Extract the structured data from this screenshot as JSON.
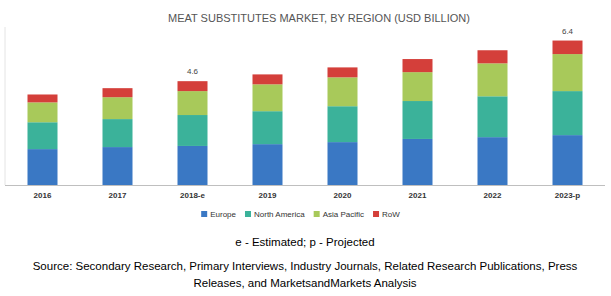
{
  "chart_data": {
    "type": "bar",
    "stacked": true,
    "title": "MEAT SUBSTITUTES MARKET, BY REGION (USD BILLION)",
    "categories": [
      "2016",
      "2017",
      "2018-e",
      "2019",
      "2020",
      "2021",
      "2022",
      "2023-p"
    ],
    "series": [
      {
        "name": "Europe",
        "color": "#3a78c4",
        "values": [
          1.59,
          1.68,
          1.73,
          1.81,
          1.9,
          2.04,
          2.12,
          2.21
        ]
      },
      {
        "name": "North America",
        "color": "#3bb29a",
        "values": [
          1.19,
          1.24,
          1.37,
          1.46,
          1.59,
          1.68,
          1.81,
          1.95
        ]
      },
      {
        "name": "Asia Pacific",
        "color": "#a8c95a",
        "values": [
          0.88,
          0.97,
          1.06,
          1.19,
          1.28,
          1.28,
          1.46,
          1.64
        ]
      },
      {
        "name": "RoW",
        "color": "#d43f3a",
        "values": [
          0.35,
          0.4,
          0.44,
          0.44,
          0.44,
          0.58,
          0.58,
          0.6
        ]
      }
    ],
    "annotations": [
      {
        "x": "2018-e",
        "y": 4.6
      },
      {
        "x": "2023-p",
        "y": 6.4
      }
    ],
    "ylim": [
      0,
      7
    ],
    "tick_labels": "x",
    "legend": "bottom",
    "notes": "e - Estimated; p - Projected",
    "source": [
      "Source: Secondary Research, Primary Interviews, Industry Journals, Related Research Publications, Press",
      "Releases, and MarketsandMarkets Analysis"
    ]
  }
}
